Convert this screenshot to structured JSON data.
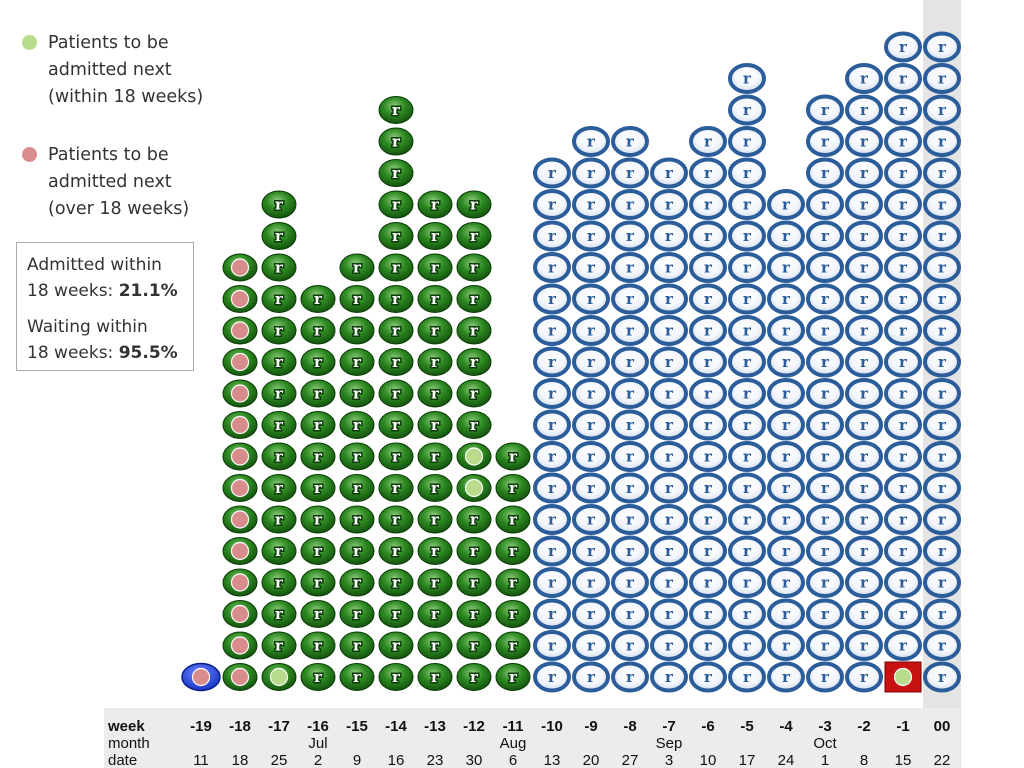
{
  "legend": [
    {
      "text": "Patients to be\nadmitted next\n(within 18 weeks)",
      "color": "#b9dc8c",
      "icon": "green-dot"
    },
    {
      "text": "Patients to be\nadmitted next\n(over 18 weeks)",
      "color": "#d98c8c",
      "icon": "red-dot"
    }
  ],
  "stats": {
    "admitted_label": "Admitted within\n18 weeks: ",
    "admitted_value": "21.1%",
    "waiting_label": "Waiting within\n18 weeks: ",
    "waiting_value": "95.5%"
  },
  "chart_data": {
    "type": "pictograph",
    "row_labels": [
      "week",
      "month",
      "date"
    ],
    "weeks": [
      "-19",
      "-18",
      "-17",
      "-16",
      "-15",
      "-14",
      "-13",
      "-12",
      "-11",
      "-10",
      "-9",
      "-8",
      "-7",
      "-6",
      "-5",
      "-4",
      "-3",
      "-2",
      "-1",
      "00"
    ],
    "months": [
      "",
      "",
      "",
      "Jul",
      "",
      "",
      "",
      "",
      "Aug",
      "",
      "",
      "",
      "Sep",
      "",
      "",
      "",
      "Oct",
      "",
      "",
      ""
    ],
    "dates": [
      "11",
      "18",
      "25",
      "2",
      "9",
      "16",
      "23",
      "30",
      "6",
      "13",
      "20",
      "27",
      "3",
      "10",
      "17",
      "24",
      "1",
      "8",
      "15",
      "22"
    ],
    "counts": [
      1,
      14,
      16,
      13,
      14,
      19,
      16,
      16,
      8,
      17,
      18,
      18,
      17,
      18,
      20,
      16,
      19,
      20,
      21,
      21
    ],
    "status": [
      "admitted",
      "admitted",
      "admitted",
      "admitted",
      "admitted",
      "admitted",
      "admitted",
      "admitted",
      "admitted",
      "waiting",
      "waiting",
      "waiting",
      "waiting",
      "waiting",
      "waiting",
      "waiting",
      "waiting",
      "waiting",
      "waiting",
      "waiting"
    ],
    "highlighted_week": "00",
    "icon_letter": "r",
    "colors": {
      "admitted": "#2d7a1f",
      "waiting": "#2b5d9b",
      "next_within": "#b9dc8c",
      "next_over": "#d98c8c",
      "special_blue": "#1a3fd0",
      "special_red": "#c81212",
      "axis_band": "#e4e4e4"
    },
    "markers": {
      "next_within": [
        {
          "week": "-17",
          "row": 1
        },
        {
          "week": "-12",
          "row": 7
        },
        {
          "week": "-12",
          "row": 8
        },
        {
          "week": "-1",
          "row": 1
        }
      ],
      "next_over": [
        {
          "week": "-19",
          "row": 1
        },
        {
          "week": "-18",
          "row": 1
        },
        {
          "week": "-18",
          "row": 2
        },
        {
          "week": "-18",
          "row": 3
        },
        {
          "week": "-18",
          "row": 4
        },
        {
          "week": "-18",
          "row": 5
        },
        {
          "week": "-18",
          "row": 6
        },
        {
          "week": "-18",
          "row": 7
        },
        {
          "week": "-18",
          "row": 8
        },
        {
          "week": "-18",
          "row": 9
        },
        {
          "week": "-18",
          "row": 10
        },
        {
          "week": "-18",
          "row": 11
        },
        {
          "week": "-18",
          "row": 12
        },
        {
          "week": "-18",
          "row": 13
        },
        {
          "week": "-18",
          "row": 14
        }
      ],
      "blue_blob": [
        {
          "week": "-19",
          "row": 1
        }
      ],
      "red_square": [
        {
          "week": "-1",
          "row": 1
        }
      ]
    }
  }
}
